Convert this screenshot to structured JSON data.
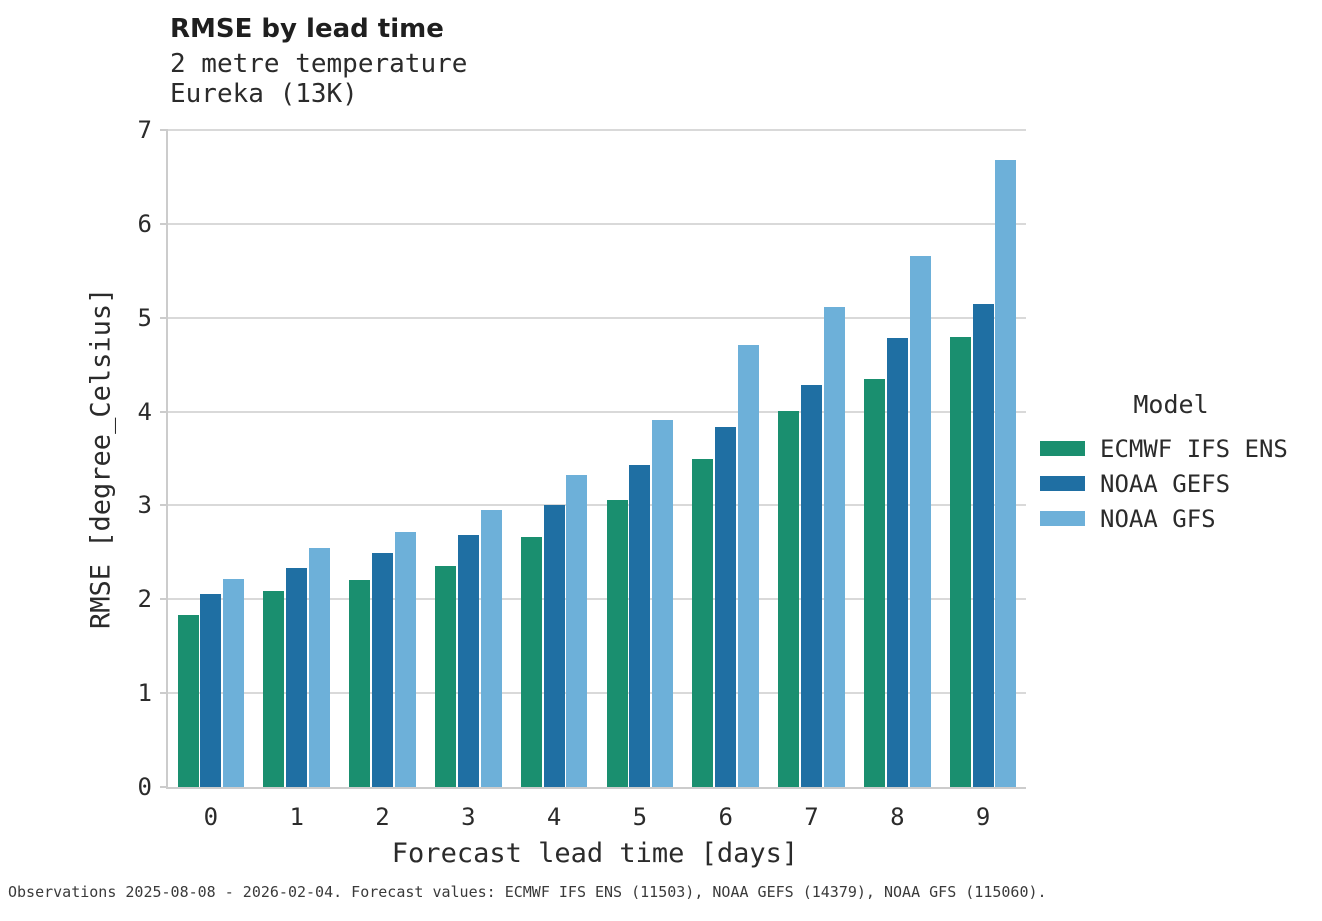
{
  "header": {
    "title": "RMSE by lead time",
    "subtitle_line1": "2 metre temperature",
    "subtitle_line2": "Eureka (13K)"
  },
  "footer": {
    "text": "Observations 2025-08-08 - 2026-02-04. Forecast values: ECMWF IFS ENS (11503), NOAA GEFS (14379), NOAA GFS (115060)."
  },
  "colors": {
    "ecmwf_ifs_ens": "#1a8f6f",
    "noaa_gefs": "#1f6fa3",
    "noaa_gfs": "#6db0d9",
    "gridline": "#d9d9d9",
    "spine": "#cccccc",
    "text": "#2b2b2b",
    "footnote_text": "#3a3a3a"
  },
  "chart_data": {
    "type": "bar",
    "title": "RMSE by lead time",
    "subtitle": [
      "2 metre temperature",
      "Eureka (13K)"
    ],
    "categories": [
      0,
      1,
      2,
      3,
      4,
      5,
      6,
      7,
      8,
      9
    ],
    "series": [
      {
        "name": "ECMWF IFS ENS",
        "color": "#1a8f6f",
        "values": [
          1.83,
          2.09,
          2.21,
          2.35,
          2.66,
          3.06,
          3.5,
          4.01,
          4.35,
          4.79
        ]
      },
      {
        "name": "NOAA GEFS",
        "color": "#1f6fa3",
        "values": [
          2.06,
          2.33,
          2.49,
          2.69,
          3.0,
          3.43,
          3.84,
          4.28,
          4.78,
          5.15
        ]
      },
      {
        "name": "NOAA GFS",
        "color": "#6db0d9",
        "values": [
          2.22,
          2.55,
          2.72,
          2.95,
          3.32,
          3.91,
          4.71,
          5.11,
          5.66,
          6.68
        ]
      }
    ],
    "xlabel": "Forecast lead time [days]",
    "ylabel": "RMSE [degree_Celsius]",
    "ylim": [
      0,
      7
    ],
    "yticks": [
      0,
      1,
      2,
      3,
      4,
      5,
      6,
      7
    ],
    "legend_title": "Model",
    "legend_position": "right",
    "grid": "horizontal"
  }
}
